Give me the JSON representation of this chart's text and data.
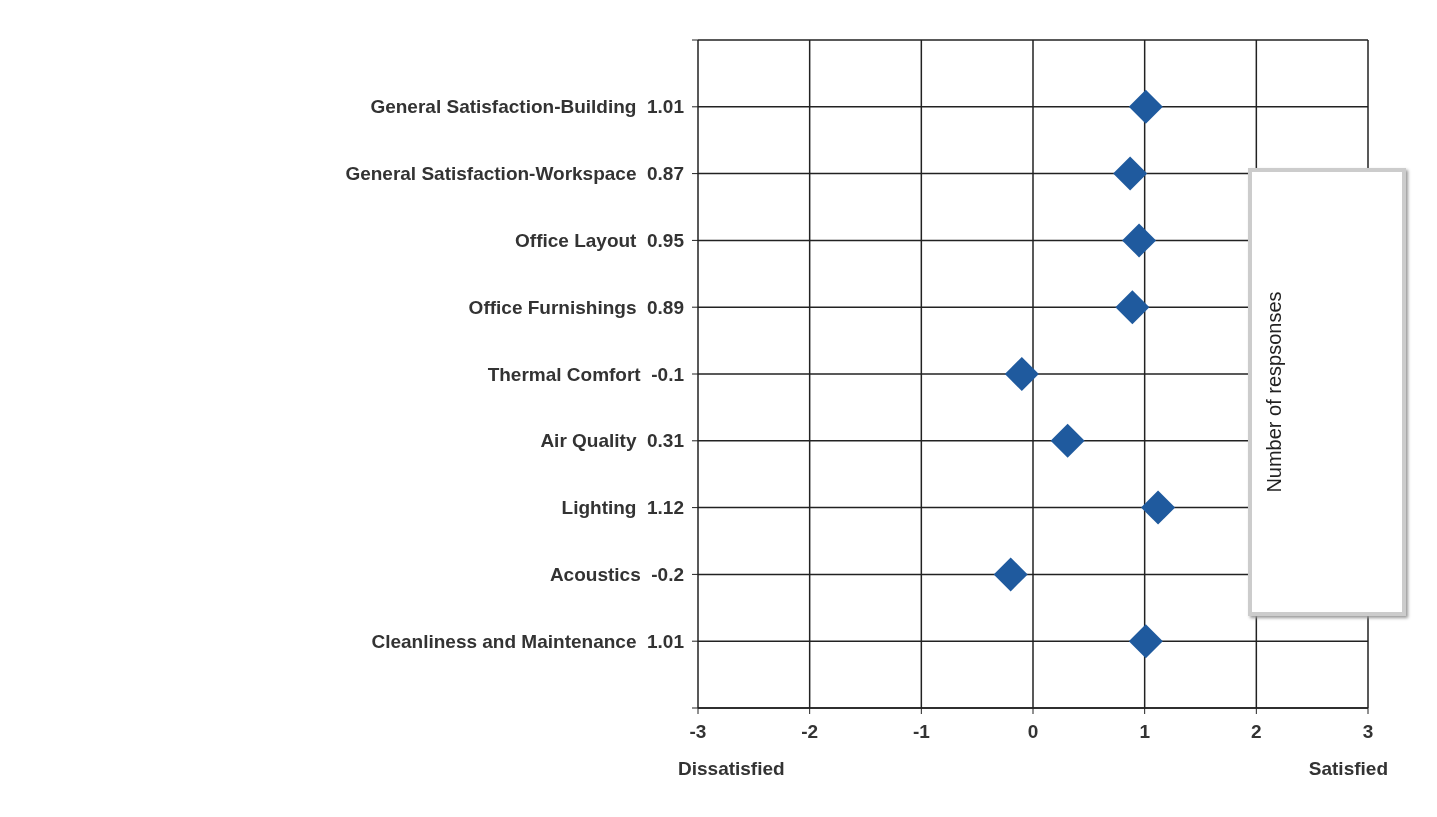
{
  "chart_data": [
    {
      "type": "scatter",
      "orientation": "horizontal",
      "categories": [
        "General Satisfaction-Building  1.01",
        "General Satisfaction-Workspace  0.87",
        "Office Layout  0.95",
        "Office Furnishings  0.89",
        "Thermal Comfort  -0.1",
        "Air Quality  0.31",
        "Lighting  1.12",
        "Acoustics  -0.2",
        "Cleanliness and Maintenance  1.01"
      ],
      "values": [
        1.01,
        0.87,
        0.95,
        0.89,
        -0.1,
        0.31,
        1.12,
        -0.2,
        1.01
      ],
      "color": "#1f5a9e",
      "marker": "diamond",
      "xlim": [
        -3,
        3
      ],
      "xticks": [
        -3,
        -2,
        -1,
        0,
        1,
        2,
        3
      ],
      "annotations": [
        "Dissatisfied",
        "Satisfied"
      ],
      "grid": true
    },
    {
      "type": "other",
      "ylabel": "Number of respsonses"
    }
  ]
}
